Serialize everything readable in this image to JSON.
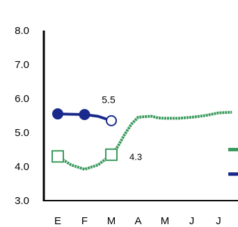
{
  "chart_data": {
    "type": "line",
    "categories": [
      "E",
      "F",
      "M",
      "A",
      "M",
      "J",
      "J"
    ],
    "y_ticks": [
      "3.0",
      "4.0",
      "5.0",
      "6.0",
      "7.0",
      "8.0"
    ],
    "ylim": [
      3.0,
      8.0
    ],
    "grid": false,
    "legend": "none",
    "series": [
      {
        "color": "#1a2a8c",
        "style": "solid-with-markers",
        "points": [
          [
            0,
            5.55
          ],
          [
            1,
            5.53
          ],
          [
            1.5,
            5.48
          ],
          [
            2,
            5.35
          ]
        ],
        "markers": [
          {
            "x": 0,
            "y": 5.55,
            "shape": "filled-circle"
          },
          {
            "x": 1,
            "y": 5.53,
            "shape": "filled-circle"
          },
          {
            "x": 2,
            "y": 5.35,
            "shape": "open-circle"
          }
        ],
        "end_marker_y": 3.78
      },
      {
        "color": "#3a9a5c",
        "style": "dashed-with-markers",
        "points": [
          [
            0,
            4.3
          ],
          [
            0.5,
            4.05
          ],
          [
            1,
            3.92
          ],
          [
            1.5,
            4.05
          ],
          [
            2,
            4.35
          ],
          [
            2.25,
            4.6
          ],
          [
            2.5,
            4.95
          ],
          [
            2.75,
            5.25
          ],
          [
            3,
            5.45
          ],
          [
            3.25,
            5.47
          ],
          [
            3.5,
            5.48
          ],
          [
            3.75,
            5.43
          ],
          [
            4,
            5.42
          ],
          [
            4.5,
            5.42
          ],
          [
            5,
            5.45
          ],
          [
            5.5,
            5.5
          ],
          [
            6,
            5.58
          ],
          [
            6.5,
            5.6
          ]
        ],
        "markers": [
          {
            "x": 0,
            "y": 4.3,
            "shape": "open-square"
          },
          {
            "x": 2,
            "y": 4.35,
            "shape": "open-square"
          }
        ],
        "end_marker_y": 4.5
      }
    ],
    "annotations": [
      {
        "text": "5.5",
        "x": 2,
        "y": 5.5
      },
      {
        "text": "4.3",
        "x": 2,
        "y": 4.3
      }
    ]
  }
}
